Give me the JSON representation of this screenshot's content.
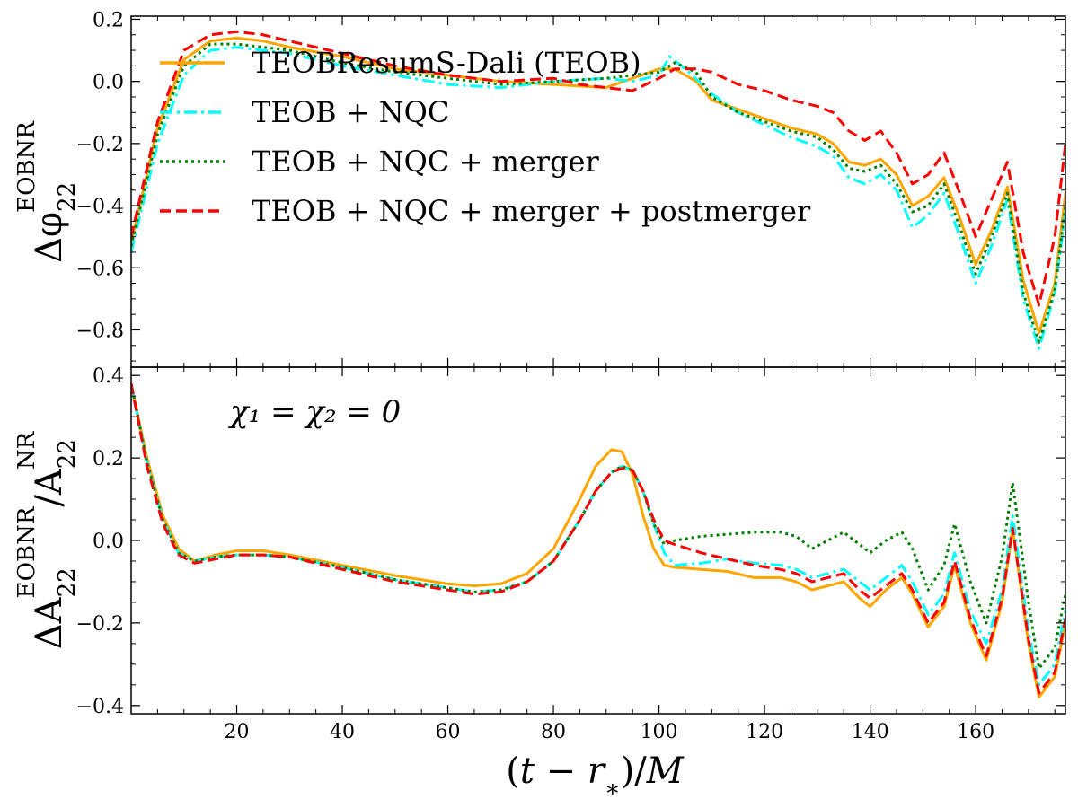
{
  "chart_data": [
    {
      "type": "line",
      "panel": "top",
      "ylabel": "Δφ₂₂ᴱᴼᴮᴺᴿ",
      "ylabel_base": "Δφ",
      "ylabel_sub": "22",
      "ylabel_sup": "EOBNR",
      "xlim": [
        0,
        177
      ],
      "ylim": [
        -0.92,
        0.21
      ],
      "yticks": [
        0.2,
        0.0,
        -0.2,
        -0.4,
        -0.6,
        -0.8
      ],
      "ytick_labels": [
        "0.2",
        "0.0",
        "−0.2",
        "−0.4",
        "−0.6",
        "−0.8"
      ],
      "legend_position": "upper-left",
      "series": [
        {
          "name": "TEOBResumS-Dali (TEOB)",
          "color": "#FFA500",
          "style": "solid",
          "x": [
            0,
            5,
            10,
            15,
            20,
            25,
            30,
            40,
            50,
            60,
            70,
            80,
            90,
            95,
            100,
            103,
            107,
            110,
            115,
            120,
            125,
            130,
            133,
            136,
            139,
            142,
            145,
            148,
            151,
            154,
            157,
            160,
            163,
            166,
            169,
            172,
            175,
            177
          ],
          "y": [
            -0.52,
            -0.15,
            0.07,
            0.13,
            0.14,
            0.13,
            0.11,
            0.08,
            0.04,
            0.02,
            0.0,
            -0.01,
            -0.02,
            0.01,
            0.04,
            0.04,
            0.0,
            -0.06,
            -0.09,
            -0.12,
            -0.15,
            -0.17,
            -0.2,
            -0.26,
            -0.27,
            -0.25,
            -0.3,
            -0.4,
            -0.37,
            -0.31,
            -0.44,
            -0.59,
            -0.48,
            -0.34,
            -0.64,
            -0.81,
            -0.65,
            -0.36
          ]
        },
        {
          "name": "TEOB + NQC",
          "color": "#00FFFF",
          "style": "dashdot",
          "x": [
            0,
            5,
            10,
            15,
            20,
            25,
            30,
            40,
            50,
            60,
            70,
            80,
            90,
            95,
            100,
            102,
            105,
            110,
            115,
            120,
            125,
            130,
            133,
            136,
            139,
            142,
            145,
            148,
            151,
            154,
            157,
            160,
            163,
            166,
            169,
            172,
            175,
            177
          ],
          "y": [
            -0.55,
            -0.2,
            0.02,
            0.1,
            0.11,
            0.1,
            0.09,
            0.05,
            0.02,
            -0.01,
            -0.02,
            0.0,
            0.01,
            0.0,
            0.02,
            0.08,
            0.04,
            -0.04,
            -0.1,
            -0.14,
            -0.18,
            -0.21,
            -0.24,
            -0.31,
            -0.33,
            -0.3,
            -0.35,
            -0.47,
            -0.43,
            -0.36,
            -0.5,
            -0.65,
            -0.53,
            -0.38,
            -0.7,
            -0.86,
            -0.68,
            -0.42
          ]
        },
        {
          "name": "TEOB + NQC + merger",
          "color": "#008000",
          "style": "dotted",
          "x": [
            0,
            5,
            10,
            15,
            20,
            25,
            30,
            40,
            50,
            60,
            70,
            80,
            90,
            95,
            100,
            103,
            107,
            110,
            115,
            120,
            125,
            130,
            133,
            136,
            139,
            142,
            145,
            148,
            151,
            154,
            157,
            160,
            163,
            166,
            169,
            172,
            175,
            177
          ],
          "y": [
            -0.53,
            -0.17,
            0.05,
            0.12,
            0.12,
            0.11,
            0.1,
            0.06,
            0.03,
            0.01,
            -0.01,
            0.0,
            0.01,
            0.02,
            0.03,
            0.06,
            0.03,
            -0.05,
            -0.1,
            -0.13,
            -0.16,
            -0.18,
            -0.22,
            -0.28,
            -0.29,
            -0.27,
            -0.33,
            -0.42,
            -0.4,
            -0.33,
            -0.47,
            -0.62,
            -0.5,
            -0.36,
            -0.68,
            -0.84,
            -0.67,
            -0.4
          ]
        },
        {
          "name": "TEOB + NQC + merger + postmerger",
          "color": "#FF0000",
          "style": "dashed",
          "x": [
            0,
            5,
            10,
            15,
            20,
            25,
            30,
            40,
            50,
            60,
            70,
            80,
            85,
            90,
            95,
            100,
            103,
            107,
            110,
            115,
            120,
            125,
            130,
            133,
            136,
            139,
            142,
            145,
            148,
            151,
            154,
            157,
            160,
            163,
            166,
            169,
            172,
            175,
            177
          ],
          "y": [
            -0.5,
            -0.13,
            0.1,
            0.15,
            0.16,
            0.15,
            0.13,
            0.09,
            0.05,
            0.02,
            0.0,
            0.01,
            -0.01,
            -0.02,
            -0.03,
            0.01,
            0.04,
            0.04,
            0.03,
            -0.01,
            -0.03,
            -0.06,
            -0.08,
            -0.1,
            -0.16,
            -0.19,
            -0.16,
            -0.23,
            -0.33,
            -0.3,
            -0.23,
            -0.36,
            -0.5,
            -0.38,
            -0.26,
            -0.55,
            -0.72,
            -0.5,
            -0.2
          ]
        }
      ]
    },
    {
      "type": "line",
      "panel": "bottom",
      "ylabel": "ΔA₂₂ᴱᴼᴮᴺᴿ / A₂₂ᴺᴿ",
      "ylabel_A": "ΔA",
      "ylabel_A_sub": "22",
      "ylabel_A_sup": "EOBNR",
      "ylabel_slash": "/",
      "ylabel_B": "A",
      "ylabel_B_sub": "22",
      "ylabel_B_sup": "NR",
      "xlabel": "(t − r∗)/M",
      "xlabel_parts": {
        "open": "(",
        "t": "t",
        "minus": " − ",
        "r": "r",
        "rsub": "∗",
        "close": ")/",
        "M": "M"
      },
      "annotation": "χ₁ = χ₂ = 0",
      "xlim": [
        0,
        177
      ],
      "ylim": [
        -0.42,
        0.42
      ],
      "xticks": [
        20,
        40,
        60,
        80,
        100,
        120,
        140,
        160
      ],
      "xtick_labels": [
        "20",
        "40",
        "60",
        "80",
        "100",
        "120",
        "140",
        "160"
      ],
      "yticks": [
        0.4,
        0.2,
        0.0,
        -0.2,
        -0.4
      ],
      "ytick_labels": [
        "0.4",
        "0.2",
        "0.0",
        "−0.2",
        "−0.4"
      ],
      "series": [
        {
          "name": "TEOBResumS-Dali (TEOB)",
          "color": "#FFA500",
          "style": "solid",
          "x": [
            0,
            3,
            6,
            9,
            12,
            16,
            20,
            25,
            30,
            40,
            50,
            60,
            65,
            70,
            75,
            80,
            85,
            88,
            91,
            93,
            95,
            97,
            99,
            101,
            103,
            108,
            113,
            118,
            123,
            126,
            129,
            132,
            135,
            138,
            140,
            143,
            146,
            148,
            151,
            154,
            156,
            159,
            162,
            165,
            167,
            170,
            172,
            175,
            177
          ],
          "y": [
            0.38,
            0.2,
            0.06,
            -0.02,
            -0.05,
            -0.035,
            -0.025,
            -0.025,
            -0.035,
            -0.06,
            -0.085,
            -0.105,
            -0.11,
            -0.105,
            -0.08,
            -0.02,
            0.1,
            0.18,
            0.22,
            0.215,
            0.16,
            0.06,
            -0.02,
            -0.06,
            -0.065,
            -0.07,
            -0.075,
            -0.09,
            -0.09,
            -0.1,
            -0.12,
            -0.11,
            -0.1,
            -0.14,
            -0.16,
            -0.12,
            -0.09,
            -0.13,
            -0.21,
            -0.16,
            -0.06,
            -0.2,
            -0.29,
            -0.15,
            0.03,
            -0.25,
            -0.38,
            -0.33,
            -0.2
          ]
        },
        {
          "name": "TEOB + NQC",
          "color": "#00FFFF",
          "style": "dashdot",
          "x": [
            0,
            3,
            6,
            9,
            12,
            16,
            20,
            25,
            30,
            40,
            50,
            60,
            65,
            70,
            75,
            80,
            85,
            88,
            91,
            93,
            95,
            97,
            99,
            101,
            103,
            108,
            113,
            118,
            123,
            126,
            129,
            132,
            135,
            138,
            140,
            143,
            146,
            148,
            151,
            154,
            156,
            159,
            162,
            165,
            167,
            170,
            172,
            175,
            177
          ],
          "y": [
            0.38,
            0.19,
            0.05,
            -0.03,
            -0.05,
            -0.04,
            -0.035,
            -0.035,
            -0.04,
            -0.065,
            -0.095,
            -0.115,
            -0.125,
            -0.12,
            -0.1,
            -0.05,
            0.05,
            0.12,
            0.165,
            0.18,
            0.17,
            0.12,
            0.04,
            -0.03,
            -0.06,
            -0.055,
            -0.045,
            -0.055,
            -0.06,
            -0.07,
            -0.09,
            -0.08,
            -0.07,
            -0.1,
            -0.12,
            -0.09,
            -0.06,
            -0.1,
            -0.18,
            -0.13,
            -0.03,
            -0.17,
            -0.25,
            -0.12,
            0.06,
            -0.22,
            -0.35,
            -0.3,
            -0.17
          ]
        },
        {
          "name": "TEOB + NQC + merger",
          "color": "#008000",
          "style": "dotted",
          "x": [
            0,
            3,
            6,
            9,
            12,
            16,
            20,
            25,
            30,
            40,
            50,
            60,
            65,
            70,
            75,
            80,
            85,
            88,
            91,
            93,
            95,
            97,
            99,
            101,
            103,
            108,
            113,
            118,
            123,
            126,
            129,
            132,
            135,
            138,
            140,
            143,
            146,
            148,
            151,
            154,
            156,
            159,
            162,
            165,
            167,
            170,
            172,
            175,
            177
          ],
          "y": [
            0.38,
            0.19,
            0.05,
            -0.03,
            -0.05,
            -0.04,
            -0.035,
            -0.035,
            -0.04,
            -0.065,
            -0.095,
            -0.115,
            -0.125,
            -0.12,
            -0.1,
            -0.05,
            0.05,
            0.12,
            0.165,
            0.18,
            0.17,
            0.12,
            0.04,
            -0.01,
            0.0,
            0.01,
            0.015,
            0.02,
            0.02,
            0.01,
            -0.02,
            0.0,
            0.02,
            -0.01,
            -0.03,
            0.0,
            0.02,
            -0.02,
            -0.12,
            -0.06,
            0.04,
            -0.1,
            -0.2,
            -0.04,
            0.14,
            -0.15,
            -0.31,
            -0.26,
            -0.13
          ]
        },
        {
          "name": "TEOB + NQC + merger + postmerger",
          "color": "#FF0000",
          "style": "dashed",
          "x": [
            0,
            3,
            6,
            9,
            12,
            16,
            20,
            25,
            30,
            40,
            50,
            60,
            65,
            70,
            75,
            80,
            85,
            88,
            91,
            93,
            95,
            97,
            99,
            101,
            103,
            108,
            113,
            118,
            123,
            126,
            129,
            132,
            135,
            138,
            140,
            143,
            146,
            148,
            151,
            154,
            156,
            159,
            162,
            165,
            167,
            170,
            172,
            175,
            177
          ],
          "y": [
            0.38,
            0.18,
            0.04,
            -0.035,
            -0.055,
            -0.045,
            -0.035,
            -0.035,
            -0.04,
            -0.07,
            -0.1,
            -0.12,
            -0.13,
            -0.125,
            -0.1,
            -0.05,
            0.05,
            0.12,
            0.165,
            0.175,
            0.17,
            0.12,
            0.05,
            0.0,
            -0.01,
            -0.03,
            -0.045,
            -0.06,
            -0.07,
            -0.08,
            -0.1,
            -0.09,
            -0.08,
            -0.12,
            -0.14,
            -0.11,
            -0.08,
            -0.12,
            -0.2,
            -0.15,
            -0.05,
            -0.19,
            -0.28,
            -0.14,
            0.03,
            -0.24,
            -0.37,
            -0.32,
            -0.19
          ]
        }
      ]
    }
  ]
}
